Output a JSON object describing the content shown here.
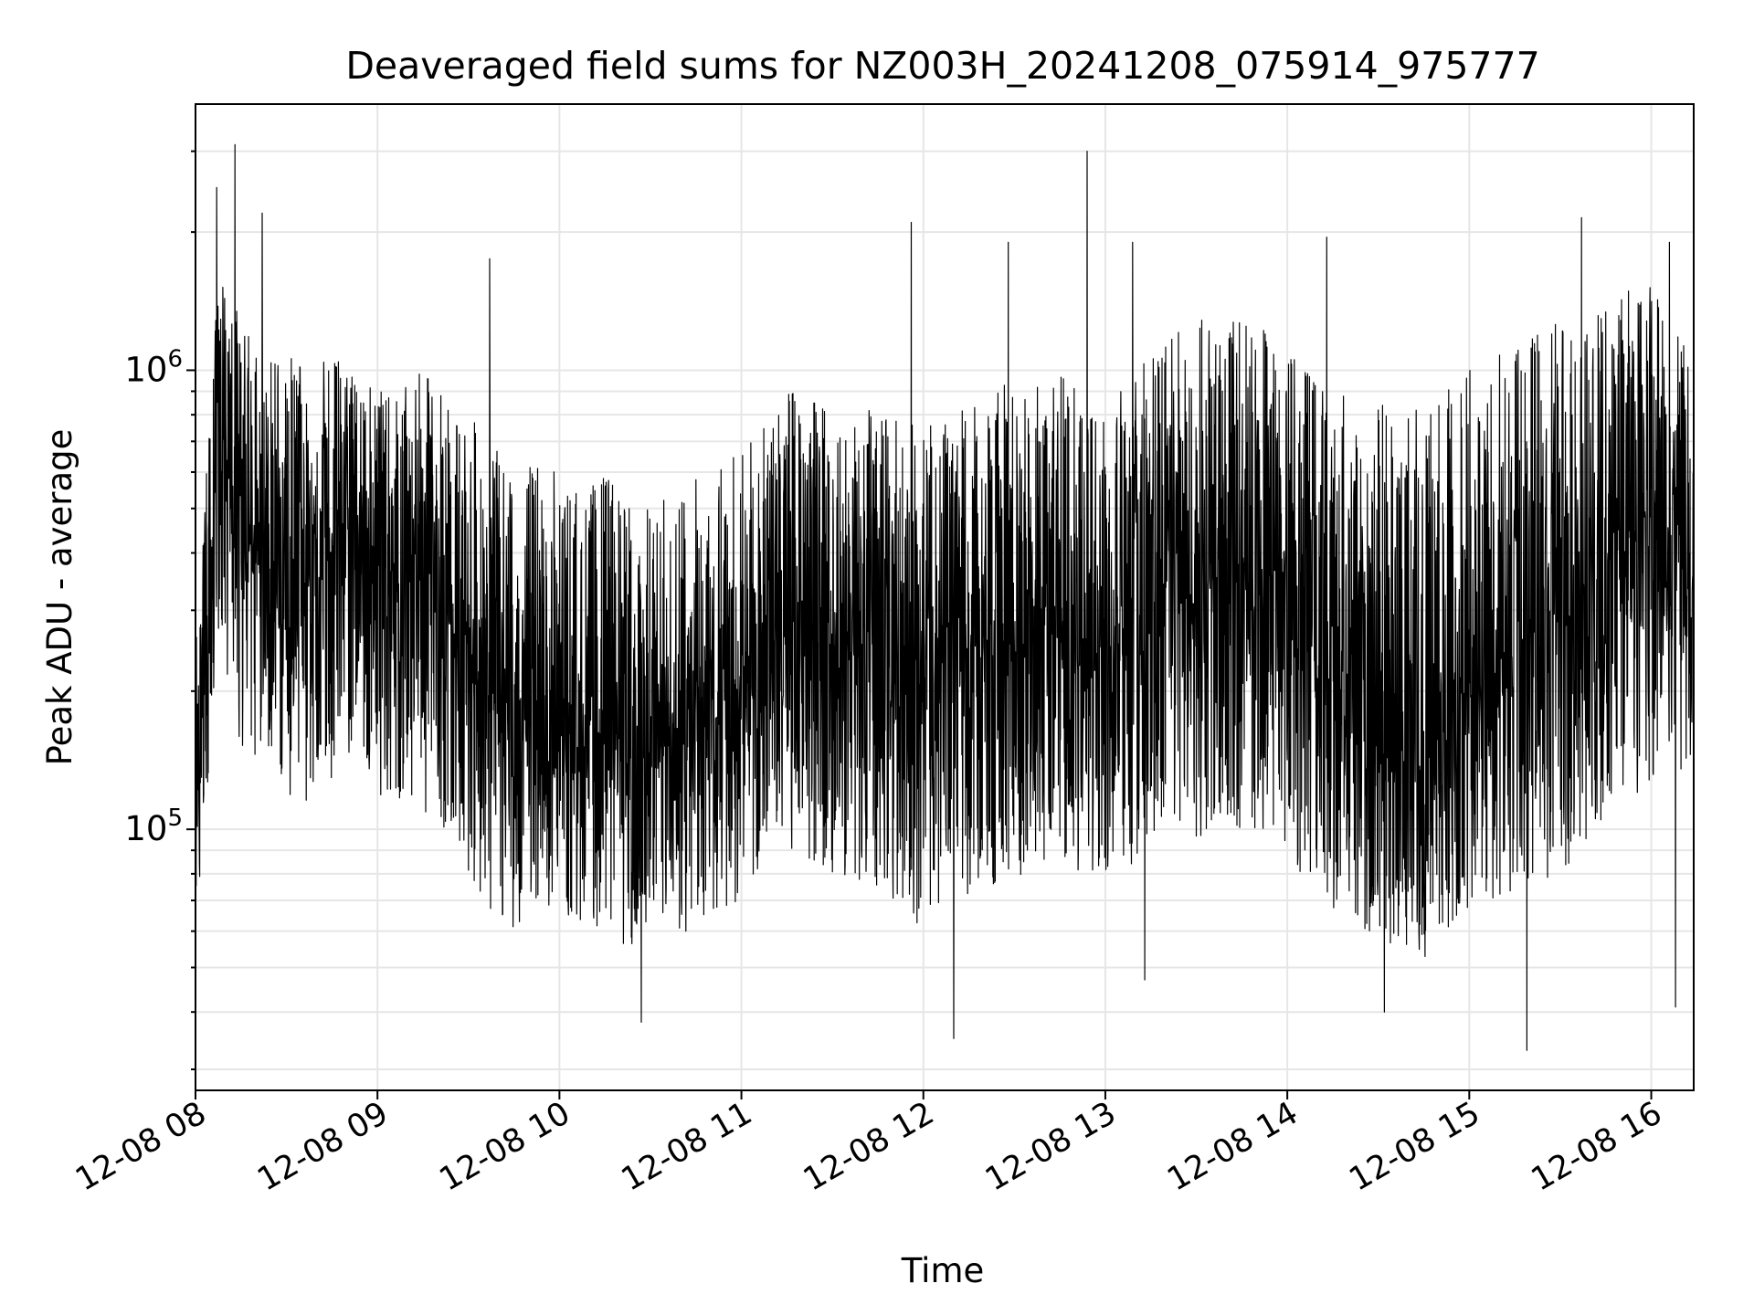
{
  "chart_data": {
    "type": "line",
    "title": "Deaveraged field sums for NZ003H_20241208_075914_975777",
    "xlabel": "Time",
    "ylabel": "Peak ADU - average",
    "xlim": [
      "2024-12-08 08:00",
      "2024-12-08 16:14"
    ],
    "ylim": [
      27000,
      3800000
    ],
    "yscale": "log",
    "grid": true,
    "grid_minor_y": true,
    "line_color": "#000000",
    "x_ticks": [
      {
        "label": "12-08 08",
        "time": "2024-12-08 08:00"
      },
      {
        "label": "12-08 09",
        "time": "2024-12-08 09:00"
      },
      {
        "label": "12-08 10",
        "time": "2024-12-08 10:00"
      },
      {
        "label": "12-08 11",
        "time": "2024-12-08 11:00"
      },
      {
        "label": "12-08 12",
        "time": "2024-12-08 12:00"
      },
      {
        "label": "12-08 13",
        "time": "2024-12-08 13:00"
      },
      {
        "label": "12-08 14",
        "time": "2024-12-08 14:00"
      },
      {
        "label": "12-08 15",
        "time": "2024-12-08 15:00"
      },
      {
        "label": "12-08 16",
        "time": "2024-12-08 16:00"
      }
    ],
    "y_ticks": [
      {
        "label_base": "10",
        "label_exp": "5",
        "value": 100000
      },
      {
        "label_base": "10",
        "label_exp": "6",
        "value": 1000000
      }
    ],
    "series": [
      {
        "times": [
          "2024-12-08 08:00",
          "2024-12-08 08:08",
          "2024-12-08 08:15",
          "2024-12-08 08:22",
          "2024-12-08 08:30",
          "2024-12-08 08:37",
          "2024-12-08 08:45",
          "2024-12-08 08:52",
          "2024-12-08 09:00",
          "2024-12-08 09:08",
          "2024-12-08 09:15",
          "2024-12-08 09:22",
          "2024-12-08 09:30",
          "2024-12-08 09:37",
          "2024-12-08 09:45",
          "2024-12-08 09:52",
          "2024-12-08 10:00",
          "2024-12-08 10:08",
          "2024-12-08 10:15",
          "2024-12-08 10:22",
          "2024-12-08 10:30",
          "2024-12-08 10:37",
          "2024-12-08 10:45",
          "2024-12-08 10:52",
          "2024-12-08 11:00",
          "2024-12-08 11:08",
          "2024-12-08 11:15",
          "2024-12-08 11:22",
          "2024-12-08 11:30",
          "2024-12-08 11:37",
          "2024-12-08 11:45",
          "2024-12-08 11:52",
          "2024-12-08 12:00",
          "2024-12-08 12:08",
          "2024-12-08 12:15",
          "2024-12-08 12:22",
          "2024-12-08 12:30",
          "2024-12-08 12:37",
          "2024-12-08 12:45",
          "2024-12-08 12:52",
          "2024-12-08 13:00",
          "2024-12-08 13:08",
          "2024-12-08 13:15",
          "2024-12-08 13:22",
          "2024-12-08 13:30",
          "2024-12-08 13:37",
          "2024-12-08 13:45",
          "2024-12-08 13:52",
          "2024-12-08 14:00",
          "2024-12-08 14:08",
          "2024-12-08 14:15",
          "2024-12-08 14:22",
          "2024-12-08 14:30",
          "2024-12-08 14:37",
          "2024-12-08 14:45",
          "2024-12-08 14:52",
          "2024-12-08 15:00",
          "2024-12-08 15:08",
          "2024-12-08 15:15",
          "2024-12-08 15:22",
          "2024-12-08 15:30",
          "2024-12-08 15:37",
          "2024-12-08 15:45",
          "2024-12-08 15:52",
          "2024-12-08 16:00",
          "2024-12-08 16:08",
          "2024-12-08 16:14"
        ],
        "values": [
          90000,
          700000,
          450000,
          380000,
          420000,
          350000,
          400000,
          450000,
          380000,
          350000,
          420000,
          300000,
          250000,
          200000,
          150000,
          180000,
          160000,
          150000,
          170000,
          140000,
          130000,
          150000,
          160000,
          180000,
          200000,
          230000,
          300000,
          280000,
          260000,
          240000,
          230000,
          220000,
          210000,
          220000,
          230000,
          240000,
          250000,
          260000,
          270000,
          250000,
          240000,
          260000,
          280000,
          300000,
          330000,
          350000,
          380000,
          360000,
          300000,
          250000,
          200000,
          180000,
          150000,
          130000,
          140000,
          170000,
          200000,
          220000,
          240000,
          260000,
          300000,
          330000,
          380000,
          450000,
          500000,
          420000,
          350000
        ],
        "high_envelope": [
          250000,
          1800000,
          1300000,
          1100000,
          1100000,
          1000000,
          1100000,
          1000000,
          900000,
          900000,
          1000000,
          900000,
          800000,
          700000,
          600000,
          650000,
          600000,
          550000,
          600000,
          550000,
          500000,
          550000,
          600000,
          650000,
          700000,
          750000,
          950000,
          900000,
          850000,
          850000,
          800000,
          800000,
          750000,
          800000,
          850000,
          900000,
          950000,
          950000,
          1000000,
          900000,
          900000,
          1000000,
          1100000,
          1200000,
          1300000,
          1300000,
          1400000,
          1300000,
          1200000,
          1000000,
          900000,
          900000,
          900000,
          850000,
          900000,
          1000000,
          1000000,
          1100000,
          1100000,
          1200000,
          1300000,
          1400000,
          1400000,
          1500000,
          1600000,
          1400000,
          900000
        ],
        "low_envelope": [
          60000,
          250000,
          150000,
          140000,
          120000,
          110000,
          130000,
          150000,
          120000,
          110000,
          110000,
          100000,
          80000,
          65000,
          60000,
          70000,
          65000,
          60000,
          62000,
          55000,
          52000,
          58000,
          60000,
          65000,
          70000,
          80000,
          90000,
          85000,
          80000,
          75000,
          72000,
          70000,
          60000,
          65000,
          70000,
          75000,
          78000,
          80000,
          85000,
          78000,
          70000,
          75000,
          80000,
          85000,
          90000,
          95000,
          100000,
          95000,
          85000,
          75000,
          65000,
          60000,
          55000,
          50000,
          52000,
          60000,
          65000,
          70000,
          72000,
          75000,
          80000,
          85000,
          95000,
          110000,
          130000,
          120000,
          150000
        ],
        "peaks": [
          {
            "time": "2024-12-08 08:13",
            "value": 3100000
          },
          {
            "time": "2024-12-08 08:07",
            "value": 2500000
          },
          {
            "time": "2024-12-08 08:22",
            "value": 2200000
          },
          {
            "time": "2024-12-08 09:37",
            "value": 1750000
          },
          {
            "time": "2024-12-08 11:56",
            "value": 2100000
          },
          {
            "time": "2024-12-08 12:28",
            "value": 1900000
          },
          {
            "time": "2024-12-08 12:54",
            "value": 3000000
          },
          {
            "time": "2024-12-08 13:09",
            "value": 1900000
          },
          {
            "time": "2024-12-08 14:13",
            "value": 1950000
          },
          {
            "time": "2024-12-08 15:37",
            "value": 2150000
          },
          {
            "time": "2024-12-08 16:06",
            "value": 1900000
          }
        ],
        "dips": [
          {
            "time": "2024-12-08 10:27",
            "value": 38000
          },
          {
            "time": "2024-12-08 12:10",
            "value": 35000
          },
          {
            "time": "2024-12-08 13:13",
            "value": 47000
          },
          {
            "time": "2024-12-08 14:32",
            "value": 40000
          },
          {
            "time": "2024-12-08 15:19",
            "value": 33000
          },
          {
            "time": "2024-12-08 16:08",
            "value": 41000
          }
        ]
      }
    ]
  }
}
